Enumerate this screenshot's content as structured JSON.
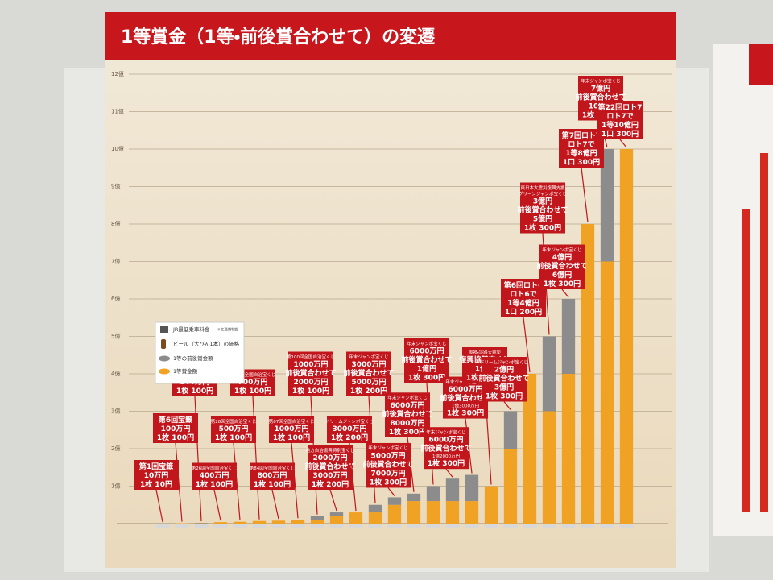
{
  "chart_data": {
    "type": "bar",
    "title": "1等賞金（1等・前後賞合わせて）の変遷",
    "ylim": [
      0,
      12
    ],
    "yticks": [
      {
        "value": 1,
        "label": "1億"
      },
      {
        "value": 2,
        "label": "2億"
      },
      {
        "value": 3,
        "label": "3億"
      },
      {
        "value": 4,
        "label": "4億"
      },
      {
        "value": 5,
        "label": "5億"
      },
      {
        "value": 6,
        "label": "6億"
      },
      {
        "value": 7,
        "label": "7億"
      },
      {
        "value": 8,
        "label": "8億"
      },
      {
        "value": 9,
        "label": "9億"
      },
      {
        "value": 10,
        "label": "10億"
      },
      {
        "value": 11,
        "label": "11億"
      },
      {
        "value": 12,
        "label": "12億"
      }
    ],
    "grid": true,
    "stacked": true,
    "series": [
      {
        "name": "1等賞金額",
        "color": "#f0a224",
        "values": [
          0.001,
          0.01,
          0.01,
          0.04,
          0.05,
          0.07,
          0.08,
          0.1,
          0.1,
          0.2,
          0.3,
          0.3,
          0.5,
          0.6,
          0.6,
          0.6,
          0.6,
          1,
          2,
          4,
          3,
          4,
          8,
          7,
          10
        ]
      },
      {
        "name": "1等の前後賞金額",
        "color": "#8c8c8c",
        "values": [
          null,
          null,
          0.01,
          null,
          null,
          null,
          null,
          null,
          0.1,
          0.1,
          null,
          0.2,
          0.2,
          0.2,
          0.4,
          0.6,
          0.7,
          null,
          1,
          null,
          2,
          2,
          null,
          3,
          null
        ]
      }
    ],
    "legend_notes": [
      "JR最低乗車料金",
      "※交通博物館",
      "ビール（大びん1本）の価格"
    ],
    "callouts": [
      [
        "第1回宝籤",
        "10万円",
        "1枚 10円"
      ],
      [
        "第6回宝籤",
        "100万円",
        "1枚 100円"
      ],
      [
        "昭和第2回宝くじ",
        "100万円",
        "前後賞合わせて",
        "200万円",
        "1枚 100円"
      ],
      [
        "第26回全国自治宝くじ",
        "400万円",
        "1枚 100円"
      ],
      [
        "第28回全国自治宝くじ",
        "500万円",
        "1枚 100円"
      ],
      [
        "第58回全国自治宝くじ",
        "700万円",
        "1枚 100円"
      ],
      [
        "第84回全国自治宝くじ",
        "800万円",
        "1枚 100円"
      ],
      [
        "第87回全国自治宝くじ",
        "1000万円",
        "1枚 100円"
      ],
      [
        "第100回全国自治宝くじ",
        "1000万円",
        "前後賞合わせて",
        "2000万円",
        "1枚 100円"
      ],
      [
        "地方自治振興特別宝くじ",
        "2000万円",
        "前後賞合わせて",
        "3000万円",
        "1枚 200円"
      ],
      [
        "ドリームジャンボ宝くじ",
        "3000万円",
        "1枚 200円"
      ],
      [
        "年末ジャンボ宝くじ",
        "3000万円",
        "前後賞合わせて",
        "5000万円",
        "1枚 200円"
      ],
      [
        "年末ジャンボ宝くじ",
        "5000万円",
        "前後賞合わせて",
        "7000万円",
        "1枚 300円"
      ],
      [
        "年末ジャンボ宝くじ",
        "6000万円",
        "前後賞合わせて",
        "8000万円",
        "1枚 300円"
      ],
      [
        "年末ジャンボ宝くじ",
        "6000万円",
        "前後賞合わせて",
        "1億円",
        "1枚 300円"
      ],
      [
        "年末ジャンボ宝くじ",
        "6000万円",
        "前後賞合わせて",
        "1億2000万円",
        "1枚 300円"
      ],
      [
        "年末ジャンボ宝くじ",
        "6000万円",
        "前後賞合わせて",
        "1億3000万円",
        "1枚 300円"
      ],
      [
        "阪神・淡路大震災",
        "復興協賛宝くじ",
        "1億円",
        "1枚 300円"
      ],
      [
        "ドリームジャンボ宝くじ",
        "2億円",
        "前後賞合わせて",
        "3億円",
        "1枚 300円"
      ],
      [
        "第6回ロト6",
        "ロト6で",
        "1等4億円",
        "1口 200円"
      ],
      [
        "東日本大震災復興支援",
        "グリーンジャンボ宝くじ",
        "3億円",
        "前後賞合わせて",
        "5億円",
        "1枚 300円"
      ],
      [
        "年末ジャンボ宝くじ",
        "4億円",
        "前後賞合わせて",
        "6億円",
        "1枚 300円"
      ],
      [
        "第7回ロト7",
        "ロト7で",
        "1等8億円",
        "1口 300円"
      ],
      [
        "年末ジャンボ宝くじ",
        "7億円",
        "前後賞合わせて",
        "10億円",
        "1枚 300円"
      ],
      [
        "第22回ロト7",
        "ロト7で",
        "1等10億円",
        "1口 300円"
      ]
    ]
  }
}
